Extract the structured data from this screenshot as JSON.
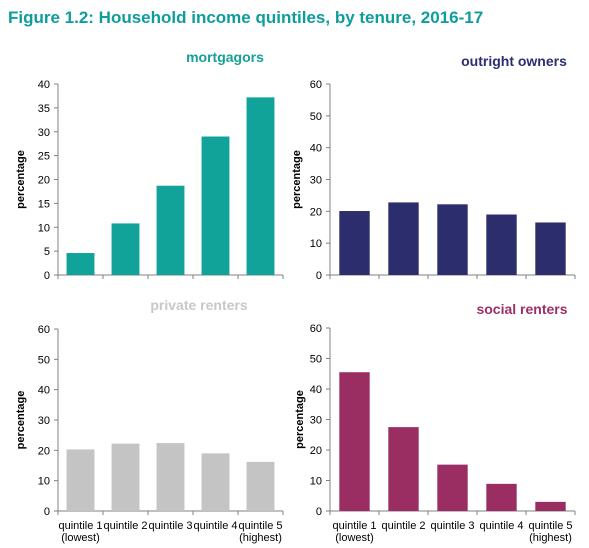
{
  "figure_title": "Figure 1.2: Household income quintiles, by tenure, 2016-17",
  "colors": {
    "title": "#0f9c9c",
    "axis": "#808080"
  },
  "chart_data": [
    {
      "type": "bar",
      "title": "mortgagors",
      "title_color": "#17a095",
      "bar_color": "#11a39a",
      "ylabel": "percentage",
      "ylim": [
        0,
        40
      ],
      "yticks": [
        0,
        5,
        10,
        15,
        20,
        25,
        30,
        35,
        40
      ],
      "categories": [
        "quintile 1 (lowest)",
        "quintile 2",
        "quintile 3",
        "quintile 4",
        "quintile 5 (highest)"
      ],
      "x_tick_labels_shown": false,
      "values": [
        4.6,
        10.8,
        18.7,
        29,
        37.2
      ]
    },
    {
      "type": "bar",
      "title": "outright owners",
      "title_color": "#2b2f72",
      "bar_color": "#2b2d6d",
      "ylabel": "percentage",
      "ylim": [
        0,
        60
      ],
      "yticks": [
        0,
        10,
        20,
        30,
        40,
        50,
        60
      ],
      "categories": [
        "quintile 1 (lowest)",
        "quintile 2",
        "quintile 3",
        "quintile 4",
        "quintile 5 (highest)"
      ],
      "x_tick_labels_shown": false,
      "values": [
        20.1,
        22.8,
        22.2,
        19,
        16.5
      ]
    },
    {
      "type": "bar",
      "title": "private renters",
      "title_color": "#c8c8c8",
      "bar_color": "#c4c4c4",
      "ylabel": "percentage",
      "ylim": [
        0,
        60
      ],
      "yticks": [
        0,
        10,
        20,
        30,
        40,
        50,
        60
      ],
      "categories": [
        "quintile 1 (lowest)",
        "quintile 2",
        "quintile 3",
        "quintile 4",
        "quintile 5 (highest)"
      ],
      "x_tick_labels_shown": true,
      "values": [
        20.3,
        22.2,
        22.4,
        19,
        16.2
      ]
    },
    {
      "type": "bar",
      "title": "social renters",
      "title_color": "#9c3066",
      "bar_color": "#9a2e63",
      "ylabel": "percentage",
      "ylim": [
        0,
        60
      ],
      "yticks": [
        0,
        10,
        20,
        30,
        40,
        50,
        60
      ],
      "categories": [
        "quintile 1 (lowest)",
        "quintile 2",
        "quintile 3",
        "quintile 4",
        "quintile 5 (highest)"
      ],
      "x_tick_labels_shown": true,
      "values": [
        45.5,
        27.5,
        15.2,
        8.9,
        3
      ]
    }
  ]
}
